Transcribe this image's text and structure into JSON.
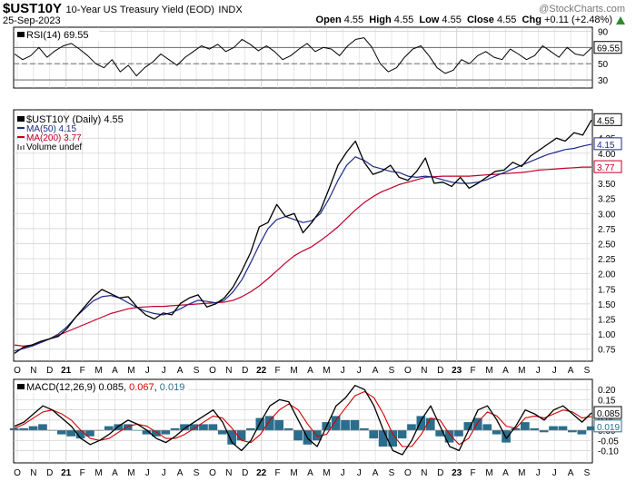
{
  "header": {
    "symbol": "$UST10Y",
    "name": "10-Year US Treasury Yield (EOD)",
    "exchange": "INDX",
    "date": "25-Sep-2023",
    "watermark": "@StockCharts.com",
    "stats": [
      {
        "label": "Open",
        "value": "4.55"
      },
      {
        "label": "High",
        "value": "4.55"
      },
      {
        "label": "Low",
        "value": "4.55"
      },
      {
        "label": "Close",
        "value": "4.55"
      },
      {
        "label": "Chg",
        "value": "+0.11 (+2.48%)"
      }
    ],
    "up_arrow": "up-arrow-icon"
  },
  "colors": {
    "price": "#000000",
    "ma50": "#1c2a8a",
    "ma200": "#c0002a",
    "macd_signal": "#d40000",
    "histogram": "#2b6d8c",
    "grid": "#cfcfcf"
  },
  "chart_data": [
    {
      "type": "line",
      "title": "RSI(14) 69.55",
      "legend": "RSI(14) 69.55",
      "current_value": "69.55",
      "ylim": [
        20,
        95
      ],
      "yticks": [
        "90",
        "70",
        "50",
        "30"
      ],
      "reference_lines": [
        70,
        50,
        30
      ],
      "series": [
        {
          "name": "RSI(14)",
          "values": [
            62,
            55,
            60,
            70,
            58,
            66,
            72,
            75,
            68,
            60,
            50,
            45,
            55,
            40,
            48,
            35,
            45,
            52,
            62,
            55,
            48,
            58,
            65,
            72,
            68,
            74,
            65,
            70,
            80,
            74,
            66,
            72,
            65,
            55,
            60,
            68,
            75,
            65,
            70,
            68,
            60,
            72,
            80,
            82,
            70,
            50,
            40,
            45,
            58,
            68,
            72,
            60,
            45,
            38,
            42,
            55,
            50,
            60,
            65,
            58,
            55,
            68,
            62,
            55,
            60,
            72,
            65,
            58,
            70,
            62,
            60,
            69.55
          ]
        }
      ]
    },
    {
      "type": "line",
      "title": "$UST10Y (Daily) 4.55",
      "ylim": [
        0.55,
        4.72
      ],
      "yticks": [
        "4.25",
        "4.00",
        "3.75",
        "3.50",
        "3.25",
        "3.00",
        "2.75",
        "2.50",
        "2.25",
        "2.00",
        "1.75",
        "1.50",
        "1.25",
        "1.00",
        "0.75"
      ],
      "legend": [
        {
          "label": "$UST10Y (Daily) 4.55",
          "swatch": "price"
        },
        {
          "label": "MA(50) 4.15",
          "swatch": "ma50"
        },
        {
          "label": "MA(200) 3.77",
          "swatch": "ma200"
        },
        {
          "label": "Volume undef",
          "swatch": "volume"
        }
      ],
      "tags": [
        {
          "label": "4.55",
          "value": 4.55,
          "color": "#000000"
        },
        {
          "label": "4.15",
          "value": 4.15,
          "color": "#1c2a8a"
        },
        {
          "label": "3.77",
          "value": 3.77,
          "color": "#c0002a"
        }
      ],
      "series": [
        {
          "name": "$UST10Y",
          "values": [
            0.68,
            0.78,
            0.82,
            0.88,
            0.92,
            0.96,
            1.09,
            1.28,
            1.45,
            1.62,
            1.74,
            1.67,
            1.6,
            1.62,
            1.45,
            1.32,
            1.25,
            1.35,
            1.32,
            1.51,
            1.6,
            1.65,
            1.45,
            1.5,
            1.6,
            1.78,
            2.05,
            2.35,
            2.78,
            2.85,
            3.15,
            2.95,
            3.0,
            2.68,
            2.85,
            3.05,
            3.42,
            3.8,
            4.02,
            4.2,
            3.85,
            3.65,
            3.7,
            3.8,
            3.6,
            3.55,
            3.7,
            3.92,
            3.5,
            3.52,
            3.45,
            3.6,
            3.42,
            3.5,
            3.6,
            3.7,
            3.72,
            3.85,
            3.78,
            3.95,
            4.05,
            4.15,
            4.25,
            4.2,
            4.34,
            4.3,
            4.55
          ]
        },
        {
          "name": "MA(50)",
          "values": [
            0.72,
            0.76,
            0.8,
            0.86,
            0.92,
            1.0,
            1.12,
            1.28,
            1.42,
            1.55,
            1.62,
            1.64,
            1.6,
            1.52,
            1.44,
            1.38,
            1.34,
            1.32,
            1.36,
            1.42,
            1.5,
            1.56,
            1.54,
            1.52,
            1.56,
            1.7,
            1.9,
            2.18,
            2.48,
            2.75,
            2.9,
            2.95,
            2.9,
            2.85,
            2.88,
            3.0,
            3.25,
            3.55,
            3.8,
            3.94,
            3.88,
            3.78,
            3.74,
            3.7,
            3.68,
            3.62,
            3.6,
            3.62,
            3.6,
            3.56,
            3.52,
            3.5,
            3.5,
            3.52,
            3.56,
            3.62,
            3.68,
            3.74,
            3.8,
            3.86,
            3.92,
            3.98,
            4.02,
            4.06,
            4.08,
            4.12,
            4.15
          ]
        },
        {
          "name": "MA(200)",
          "values": [
            0.82,
            0.8,
            0.82,
            0.86,
            0.92,
            0.98,
            1.04,
            1.1,
            1.16,
            1.22,
            1.28,
            1.34,
            1.38,
            1.42,
            1.44,
            1.45,
            1.46,
            1.46,
            1.47,
            1.48,
            1.49,
            1.5,
            1.51,
            1.52,
            1.53,
            1.56,
            1.62,
            1.7,
            1.8,
            1.92,
            2.05,
            2.18,
            2.3,
            2.38,
            2.45,
            2.55,
            2.66,
            2.78,
            2.92,
            3.06,
            3.18,
            3.28,
            3.36,
            3.42,
            3.48,
            3.52,
            3.56,
            3.6,
            3.61,
            3.62,
            3.62,
            3.62,
            3.62,
            3.63,
            3.64,
            3.65,
            3.66,
            3.67,
            3.68,
            3.7,
            3.72,
            3.73,
            3.74,
            3.75,
            3.76,
            3.77,
            3.77
          ]
        }
      ]
    },
    {
      "type": "line",
      "title": "MACD(12,26,9)",
      "legend": "MACD(12,26,9) 0.085, 0.067, 0.019",
      "legend_parts": [
        {
          "text": "MACD(12,26,9) 0.085",
          "swatch": "macd"
        },
        {
          "text": ", ",
          "swatch": "plain"
        },
        {
          "text": "0.067",
          "swatch": "signal"
        },
        {
          "text": ", ",
          "swatch": "plain"
        },
        {
          "text": "0.019",
          "swatch": "hist"
        }
      ],
      "ylim": [
        -0.16,
        0.25
      ],
      "yticks": [
        "0.20",
        "0.15",
        "0.10",
        "0.05",
        "0.00",
        "-0.05",
        "-0.10"
      ],
      "tags": [
        {
          "label": "0.085",
          "value": 0.085,
          "color": "#000000"
        },
        {
          "label": "0.019",
          "value": 0.019,
          "color": "#2b6d8c"
        }
      ],
      "series": [
        {
          "name": "MACD",
          "values": [
            0.02,
            0.04,
            0.08,
            0.12,
            0.1,
            0.06,
            0.02,
            -0.04,
            -0.07,
            -0.05,
            -0.02,
            0.02,
            0.05,
            0.03,
            0.0,
            -0.04,
            -0.06,
            -0.03,
            0.01,
            0.04,
            0.07,
            0.1,
            0.04,
            -0.06,
            -0.1,
            -0.05,
            0.04,
            0.12,
            0.15,
            0.14,
            0.05,
            -0.04,
            -0.08,
            0.02,
            0.12,
            0.16,
            0.22,
            0.2,
            0.12,
            0.0,
            -0.1,
            -0.12,
            -0.05,
            0.05,
            0.12,
            0.02,
            -0.08,
            -0.1,
            0.0,
            0.1,
            0.12,
            0.05,
            -0.04,
            0.02,
            0.1,
            0.08,
            0.05,
            0.1,
            0.12,
            0.08,
            0.04,
            0.085
          ]
        },
        {
          "name": "Signal",
          "values": [
            0.01,
            0.03,
            0.06,
            0.09,
            0.1,
            0.08,
            0.05,
            0.0,
            -0.04,
            -0.05,
            -0.04,
            -0.01,
            0.02,
            0.03,
            0.02,
            -0.01,
            -0.04,
            -0.04,
            -0.02,
            0.01,
            0.04,
            0.07,
            0.06,
            0.01,
            -0.05,
            -0.06,
            -0.02,
            0.05,
            0.1,
            0.13,
            0.1,
            0.03,
            -0.03,
            -0.02,
            0.05,
            0.11,
            0.17,
            0.19,
            0.16,
            0.08,
            -0.02,
            -0.08,
            -0.08,
            -0.02,
            0.06,
            0.05,
            -0.02,
            -0.07,
            -0.04,
            0.04,
            0.09,
            0.07,
            0.02,
            0.01,
            0.06,
            0.07,
            0.06,
            0.08,
            0.1,
            0.09,
            0.06,
            0.067
          ]
        },
        {
          "name": "Histogram",
          "values": [
            0.01,
            0.01,
            0.02,
            0.03,
            0.0,
            -0.02,
            -0.03,
            -0.04,
            -0.03,
            0.0,
            0.02,
            0.03,
            0.03,
            0.0,
            -0.02,
            -0.03,
            -0.02,
            0.01,
            0.03,
            0.03,
            0.03,
            0.03,
            -0.02,
            -0.07,
            -0.05,
            0.01,
            0.06,
            0.07,
            0.05,
            0.01,
            -0.05,
            -0.07,
            -0.05,
            0.04,
            0.07,
            0.05,
            0.05,
            0.01,
            -0.04,
            -0.08,
            -0.08,
            -0.04,
            0.03,
            0.07,
            0.06,
            -0.03,
            -0.06,
            -0.03,
            0.04,
            0.06,
            0.03,
            -0.02,
            -0.06,
            0.01,
            0.04,
            0.01,
            -0.01,
            0.02,
            0.02,
            -0.01,
            -0.02,
            0.019
          ]
        }
      ]
    }
  ],
  "x_axis": {
    "labels": [
      "O",
      "N",
      "D",
      "21",
      "F",
      "M",
      "A",
      "M",
      "J",
      "J",
      "A",
      "S",
      "O",
      "N",
      "D",
      "22",
      "F",
      "M",
      "A",
      "M",
      "J",
      "J",
      "A",
      "S",
      "O",
      "N",
      "D",
      "23",
      "F",
      "M",
      "A",
      "M",
      "J",
      "J",
      "A",
      "S"
    ],
    "bold_labels": [
      "21",
      "22",
      "23"
    ]
  }
}
